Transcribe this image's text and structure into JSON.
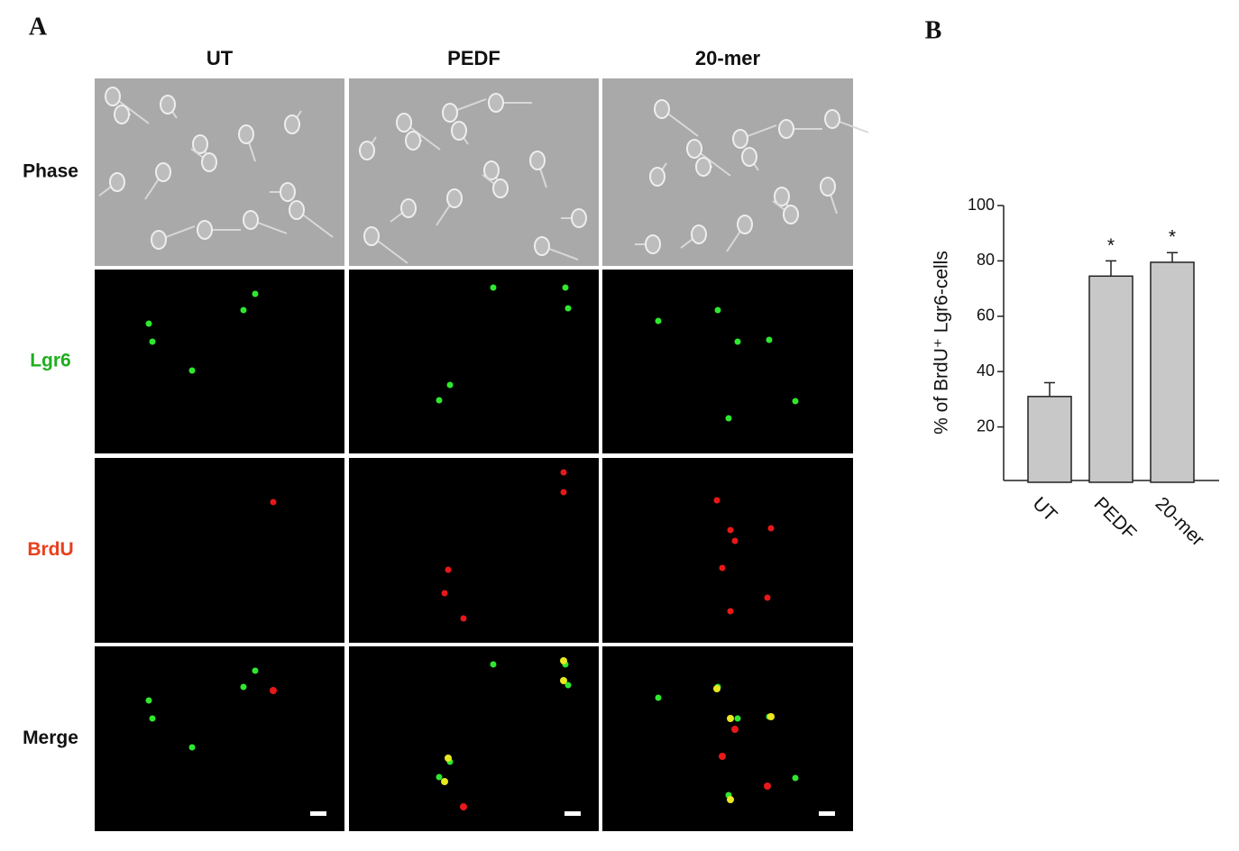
{
  "panel_a": {
    "label": "A",
    "columns": [
      "UT",
      "PEDF",
      "20-mer"
    ],
    "rows": [
      "Phase",
      "Lgr6",
      "BrdU",
      "Merge"
    ]
  },
  "chart_data": {
    "type": "bar",
    "panel_label": "B",
    "ylabel": "% of BrdU⁺ Lgr6-cells",
    "categories": [
      "UT",
      "PEDF",
      "20-mer"
    ],
    "values": [
      31,
      74.5,
      79.5
    ],
    "errors": [
      5,
      5.5,
      3.5
    ],
    "significance": [
      null,
      "*",
      "*"
    ],
    "color": "#c8c8c8",
    "ylim": [
      0,
      100
    ],
    "yticks": [
      20,
      40,
      60,
      80,
      100
    ],
    "grid": false
  }
}
